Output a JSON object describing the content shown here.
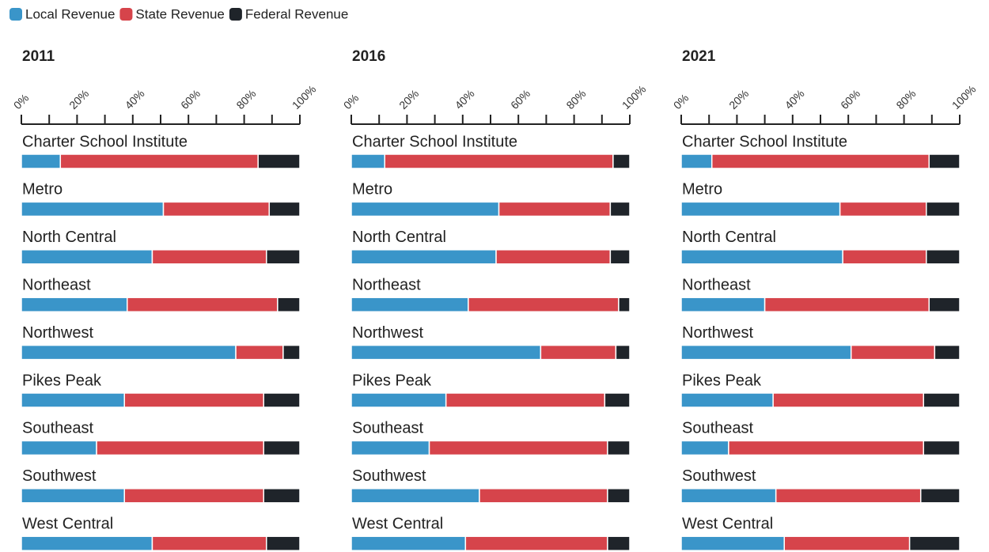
{
  "chart_data": [
    {
      "type": "stacked_bar_h",
      "title": "2011",
      "categories": [
        "Charter School Institute",
        "Metro",
        "North Central",
        "Northeast",
        "Northwest",
        "Pikes Peak",
        "Southeast",
        "Southwest",
        "West Central"
      ],
      "series": [
        {
          "name": "Local Revenue",
          "color": "#3a95c9",
          "values": [
            14,
            51,
            47,
            38,
            77,
            37,
            27,
            37,
            47
          ]
        },
        {
          "name": "State Revenue",
          "color": "#d6444b",
          "values": [
            71,
            38,
            41,
            54,
            17,
            50,
            60,
            50,
            41
          ]
        },
        {
          "name": "Federal Revenue",
          "color": "#1f242a",
          "values": [
            15,
            11,
            12,
            8,
            6,
            13,
            13,
            13,
            12
          ]
        }
      ],
      "xlim": [
        0,
        100
      ],
      "xticks": [
        {
          "value": 0,
          "label": "0%"
        },
        {
          "value": 20,
          "label": "20%"
        },
        {
          "value": 40,
          "label": "40%"
        },
        {
          "value": 60,
          "label": "60%"
        },
        {
          "value": 80,
          "label": "80%"
        },
        {
          "value": 100,
          "label": "100%"
        }
      ],
      "minor_xticks": [
        10,
        30,
        50,
        70,
        90
      ]
    },
    {
      "type": "stacked_bar_h",
      "title": "2016",
      "categories": [
        "Charter School Institute",
        "Metro",
        "North Central",
        "Northeast",
        "Northwest",
        "Pikes Peak",
        "Southeast",
        "Southwest",
        "West Central"
      ],
      "series": [
        {
          "name": "Local Revenue",
          "color": "#3a95c9",
          "values": [
            12,
            53,
            52,
            42,
            68,
            34,
            28,
            46,
            41
          ]
        },
        {
          "name": "State Revenue",
          "color": "#d6444b",
          "values": [
            82,
            40,
            41,
            54,
            27,
            57,
            64,
            46,
            51
          ]
        },
        {
          "name": "Federal Revenue",
          "color": "#1f242a",
          "values": [
            6,
            7,
            7,
            4,
            5,
            9,
            8,
            8,
            8
          ]
        }
      ],
      "xlim": [
        0,
        100
      ],
      "xticks": [
        {
          "value": 0,
          "label": "0%"
        },
        {
          "value": 20,
          "label": "20%"
        },
        {
          "value": 40,
          "label": "40%"
        },
        {
          "value": 60,
          "label": "60%"
        },
        {
          "value": 80,
          "label": "80%"
        },
        {
          "value": 100,
          "label": "100%"
        }
      ],
      "minor_xticks": [
        10,
        30,
        50,
        70,
        90
      ]
    },
    {
      "type": "stacked_bar_h",
      "title": "2021",
      "categories": [
        "Charter School Institute",
        "Metro",
        "North Central",
        "Northeast",
        "Northwest",
        "Pikes Peak",
        "Southeast",
        "Southwest",
        "West Central"
      ],
      "series": [
        {
          "name": "Local Revenue",
          "color": "#3a95c9",
          "values": [
            11,
            57,
            58,
            30,
            61,
            33,
            17,
            34,
            37
          ]
        },
        {
          "name": "State Revenue",
          "color": "#d6444b",
          "values": [
            78,
            31,
            30,
            59,
            30,
            54,
            70,
            52,
            45
          ]
        },
        {
          "name": "Federal Revenue",
          "color": "#1f242a",
          "values": [
            11,
            12,
            12,
            11,
            9,
            13,
            13,
            14,
            18
          ]
        }
      ],
      "xlim": [
        0,
        100
      ],
      "xticks": [
        {
          "value": 0,
          "label": "0%"
        },
        {
          "value": 20,
          "label": "20%"
        },
        {
          "value": 40,
          "label": "40%"
        },
        {
          "value": 60,
          "label": "60%"
        },
        {
          "value": 80,
          "label": "80%"
        },
        {
          "value": 100,
          "label": "100%"
        }
      ],
      "minor_xticks": [
        10,
        30,
        50,
        70,
        90
      ]
    }
  ]
}
